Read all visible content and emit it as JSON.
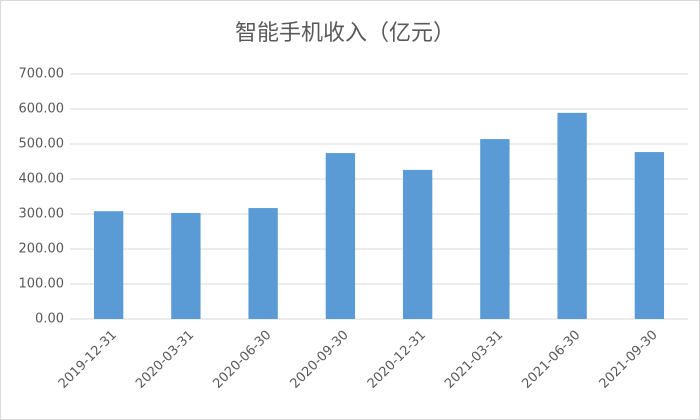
{
  "chart_data": {
    "type": "bar",
    "title": "智能手机收入（亿元）",
    "categories": [
      "2019-12-31",
      "2020-03-31",
      "2020-06-30",
      "2020-09-30",
      "2020-12-31",
      "2021-03-31",
      "2021-06-30",
      "2021-09-30"
    ],
    "values": [
      308,
      303,
      317,
      474,
      426,
      514,
      589,
      477
    ],
    "color": "#5b9bd5",
    "ylim": [
      0,
      700
    ],
    "yticks": [
      {
        "value": 0,
        "label": "0.00"
      },
      {
        "value": 100,
        "label": "100.00"
      },
      {
        "value": 200,
        "label": "200.00"
      },
      {
        "value": 300,
        "label": "300.00"
      },
      {
        "value": 400,
        "label": "400.00"
      },
      {
        "value": 500,
        "label": "500.00"
      },
      {
        "value": 600,
        "label": "600.00"
      },
      {
        "value": 700,
        "label": "700.00"
      }
    ],
    "grid": true
  }
}
